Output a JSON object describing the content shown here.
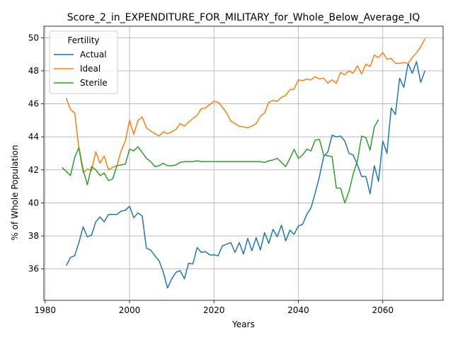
{
  "chart_data": {
    "type": "line",
    "title": "Score_2_in_EXPENDITURE_FOR_MILITARY_for_Whole_Below_Average_IQ",
    "xlabel": "Years",
    "ylabel": "% of Whole Population",
    "xlim": [
      1979.7,
      2074.3
    ],
    "ylim": [
      34.1,
      50.7
    ],
    "xticks": [
      1980,
      2000,
      2020,
      2040,
      2060
    ],
    "yticks": [
      36,
      38,
      40,
      42,
      44,
      46,
      48,
      50
    ],
    "grid": true,
    "legend": {
      "title": "Fertility",
      "position": "top-left"
    },
    "series": [
      {
        "name": "Actual",
        "color": "#1f77b4",
        "x": [
          1985,
          1986,
          1987,
          1988,
          1989,
          1990,
          1991,
          1992,
          1993,
          1994,
          1995,
          1996,
          1997,
          1998,
          1999,
          2000,
          2001,
          2002,
          2003,
          2004,
          2005,
          2006,
          2007,
          2008,
          2009,
          2010,
          2011,
          2012,
          2013,
          2014,
          2015,
          2016,
          2017,
          2018,
          2019,
          2020,
          2021,
          2022,
          2023,
          2024,
          2025,
          2026,
          2027,
          2028,
          2029,
          2030,
          2031,
          2032,
          2033,
          2034,
          2035,
          2036,
          2037,
          2038,
          2039,
          2040,
          2041,
          2042,
          2043,
          2044,
          2045,
          2046,
          2047,
          2048,
          2049,
          2050,
          2051,
          2052,
          2053,
          2054,
          2055,
          2056,
          2057,
          2058,
          2059,
          2060,
          2061,
          2062,
          2063,
          2064,
          2065,
          2066,
          2067,
          2068,
          2069,
          2070
        ],
        "values": [
          36.2,
          36.7,
          36.8,
          37.6,
          38.55,
          37.95,
          38.05,
          38.85,
          39.15,
          38.85,
          39.3,
          39.3,
          39.3,
          39.5,
          39.55,
          39.8,
          39.1,
          39.4,
          39.2,
          37.25,
          37.15,
          36.8,
          36.5,
          35.8,
          34.85,
          35.4,
          35.8,
          35.9,
          35.4,
          36.35,
          36.3,
          37.3,
          37.0,
          37.05,
          36.85,
          36.85,
          36.8,
          37.4,
          37.5,
          37.6,
          37.0,
          37.6,
          36.9,
          37.85,
          37.1,
          37.9,
          37.15,
          38.2,
          37.55,
          38.4,
          37.95,
          38.65,
          37.7,
          38.35,
          38.1,
          38.6,
          38.7,
          39.3,
          39.7,
          40.6,
          41.6,
          42.8,
          43.1,
          44.1,
          44.0,
          44.05,
          43.75,
          43.0,
          42.9,
          42.3,
          41.6,
          41.6,
          40.55,
          42.25,
          41.3,
          43.75,
          43.0,
          45.75,
          45.35,
          47.55,
          47.0,
          48.45,
          47.85,
          48.55,
          47.3,
          48.0
        ]
      },
      {
        "name": "Ideal",
        "color": "#ff7f0e",
        "x": [
          1985,
          1986,
          1987,
          1988,
          1989,
          1990,
          1991,
          1992,
          1993,
          1994,
          1995,
          1996,
          1997,
          1998,
          1999,
          2000,
          2001,
          2002,
          2003,
          2004,
          2005,
          2006,
          2007,
          2008,
          2009,
          2010,
          2011,
          2012,
          2013,
          2014,
          2015,
          2016,
          2017,
          2018,
          2019,
          2020,
          2021,
          2022,
          2023,
          2024,
          2025,
          2026,
          2027,
          2028,
          2029,
          2030,
          2031,
          2032,
          2033,
          2034,
          2035,
          2036,
          2037,
          2038,
          2039,
          2040,
          2041,
          2042,
          2043,
          2044,
          2045,
          2046,
          2047,
          2048,
          2049,
          2050,
          2051,
          2052,
          2053,
          2054,
          2055,
          2056,
          2057,
          2058,
          2059,
          2060,
          2061,
          2062,
          2063,
          2064,
          2065,
          2066,
          2067,
          2068,
          2069,
          2070
        ],
        "values": [
          46.35,
          45.65,
          45.45,
          43.3,
          41.85,
          42.05,
          41.95,
          43.1,
          42.4,
          42.85,
          42.0,
          42.15,
          42.25,
          43.15,
          43.75,
          45.0,
          44.15,
          45.0,
          45.2,
          44.55,
          44.35,
          44.2,
          44.05,
          44.3,
          44.2,
          44.3,
          44.45,
          44.8,
          44.65,
          44.9,
          45.1,
          45.3,
          45.7,
          45.75,
          45.95,
          46.15,
          46.1,
          45.8,
          45.45,
          44.95,
          44.8,
          44.65,
          44.6,
          44.55,
          44.65,
          44.8,
          45.25,
          45.45,
          46.1,
          46.2,
          46.15,
          46.4,
          46.5,
          46.85,
          46.9,
          47.45,
          47.4,
          47.5,
          47.45,
          47.65,
          47.5,
          47.55,
          47.25,
          47.45,
          47.25,
          47.9,
          47.75,
          48.0,
          47.85,
          48.3,
          47.8,
          48.4,
          48.25,
          48.95,
          48.8,
          49.1,
          48.7,
          48.75,
          48.45,
          48.45,
          48.5,
          48.45,
          48.8,
          49.1,
          49.45,
          49.95
        ]
      },
      {
        "name": "Sterile",
        "color": "#2ca02c",
        "x": [
          1984,
          1985,
          1986,
          1987,
          1988,
          1989,
          1990,
          1991,
          1992,
          1993,
          1994,
          1995,
          1996,
          1997,
          1998,
          1999,
          2000,
          2001,
          2002,
          2003,
          2004,
          2005,
          2006,
          2007,
          2008,
          2009,
          2010,
          2011,
          2012,
          2013,
          2014,
          2015,
          2016,
          2017,
          2018,
          2019,
          2020,
          2021,
          2022,
          2023,
          2024,
          2025,
          2026,
          2027,
          2028,
          2029,
          2030,
          2031,
          2032,
          2033,
          2034,
          2035,
          2036,
          2037,
          2038,
          2039,
          2040,
          2041,
          2042,
          2043,
          2044,
          2045,
          2046,
          2047,
          2048,
          2049,
          2050,
          2051,
          2052,
          2053,
          2054,
          2055,
          2056,
          2057,
          2058,
          2059
        ],
        "values": [
          42.15,
          41.9,
          41.65,
          42.75,
          43.35,
          42.0,
          41.1,
          42.2,
          42.0,
          41.65,
          41.8,
          41.35,
          41.45,
          42.25,
          42.3,
          42.35,
          43.25,
          43.15,
          43.4,
          43.05,
          42.7,
          42.5,
          42.2,
          42.25,
          42.4,
          42.25,
          42.25,
          42.3,
          42.45,
          42.5,
          42.5,
          42.5,
          42.55,
          42.5,
          42.5,
          42.5,
          42.5,
          42.5,
          42.5,
          42.5,
          42.5,
          42.5,
          42.5,
          42.5,
          42.5,
          42.5,
          42.5,
          42.5,
          42.45,
          42.55,
          42.6,
          42.7,
          42.45,
          42.2,
          42.7,
          43.25,
          42.7,
          42.9,
          43.25,
          43.15,
          43.8,
          43.85,
          42.9,
          42.85,
          42.8,
          40.9,
          40.9,
          40.0,
          40.7,
          41.75,
          42.55,
          44.05,
          43.95,
          43.2,
          44.6,
          45.05
        ]
      }
    ]
  }
}
